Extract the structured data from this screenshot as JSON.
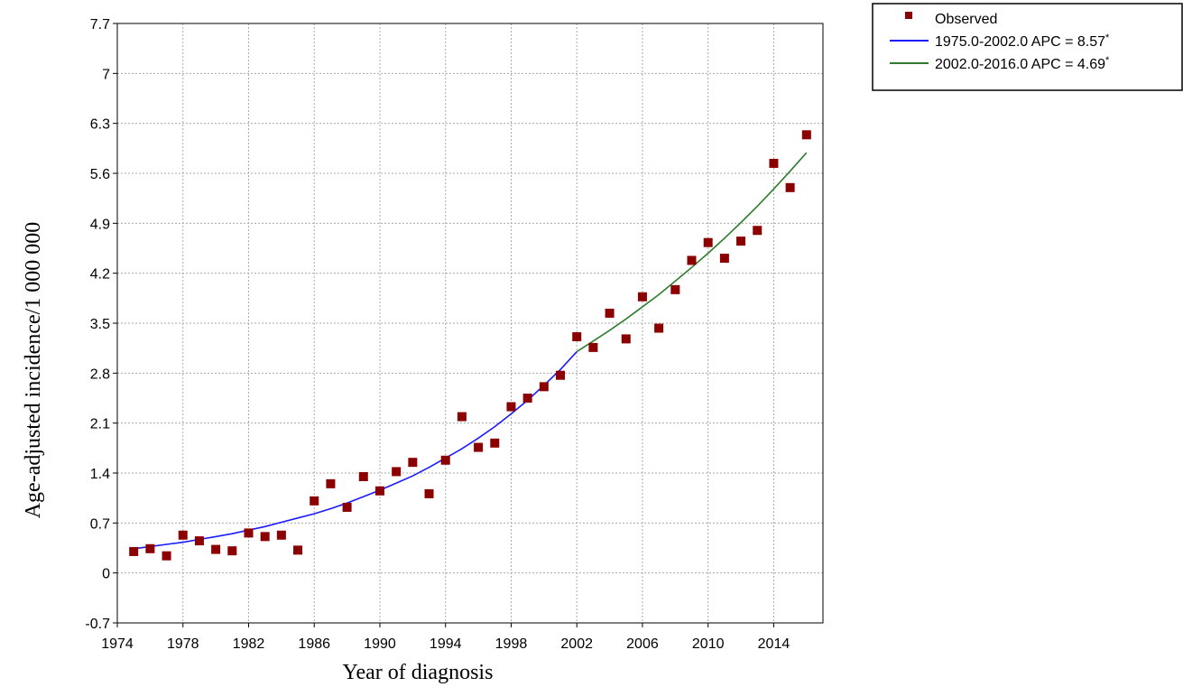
{
  "chart_data": {
    "type": "scatter",
    "xlabel": "Year of diagnosis",
    "ylabel": "Age-adjusted incidence/1 000 000",
    "xlim": [
      1974,
      2017
    ],
    "ylim": [
      -0.7,
      7.7
    ],
    "x_ticks": [
      "1974",
      "1978",
      "1982",
      "1986",
      "1990",
      "1994",
      "1998",
      "2002",
      "2006",
      "2010",
      "2014"
    ],
    "y_ticks": [
      "7.7",
      "7",
      "6.3",
      "5.6",
      "4.9",
      "4.2",
      "3.5",
      "2.8",
      "2.1",
      "1.4",
      "0.7",
      "0",
      "-0.7"
    ],
    "grid": true,
    "legend_position": "top-right",
    "series": [
      {
        "name": "Observed",
        "kind": "points",
        "color": "#8b0000",
        "x": [
          1975,
          1976,
          1977,
          1978,
          1979,
          1980,
          1981,
          1982,
          1983,
          1984,
          1985,
          1986,
          1987,
          1988,
          1989,
          1990,
          1991,
          1992,
          1993,
          1994,
          1995,
          1996,
          1997,
          1998,
          1999,
          2000,
          2001,
          2002,
          2003,
          2004,
          2005,
          2006,
          2007,
          2008,
          2009,
          2010,
          2011,
          2012,
          2013,
          2014,
          2015,
          2016
        ],
        "y": [
          0.3,
          0.34,
          0.24,
          0.53,
          0.45,
          0.33,
          0.31,
          0.56,
          0.51,
          0.53,
          0.32,
          1.01,
          1.25,
          0.92,
          1.35,
          1.15,
          1.42,
          1.55,
          1.11,
          1.58,
          2.19,
          1.76,
          1.82,
          2.33,
          2.45,
          2.61,
          2.77,
          3.31,
          3.16,
          3.64,
          3.28,
          3.87,
          3.43,
          3.97,
          4.38,
          4.63,
          4.41,
          4.65,
          4.8,
          5.74,
          5.4,
          6.14
        ]
      },
      {
        "name": "1975.0-2002.0 APC  = 8.57",
        "star": "*",
        "kind": "line",
        "color": "#1a1aff",
        "x": [
          1975,
          1976,
          1977,
          1978,
          1979,
          1980,
          1981,
          1982,
          1983,
          1984,
          1985,
          1986,
          1987,
          1988,
          1989,
          1990,
          1991,
          1992,
          1993,
          1994,
          1995,
          1996,
          1997,
          1998,
          1999,
          2000,
          2001,
          2002
        ],
        "y": [
          0.34,
          0.37,
          0.4,
          0.43,
          0.47,
          0.51,
          0.55,
          0.6,
          0.65,
          0.71,
          0.77,
          0.83,
          0.9,
          0.98,
          1.07,
          1.16,
          1.26,
          1.36,
          1.48,
          1.61,
          1.74,
          1.89,
          2.05,
          2.23,
          2.42,
          2.63,
          2.85,
          3.1
        ]
      },
      {
        "name": "2002.0-2016.0 APC  = 4.69",
        "star": "*",
        "kind": "line",
        "color": "#2e7d2e",
        "x": [
          2002,
          2003,
          2004,
          2005,
          2006,
          2007,
          2008,
          2009,
          2010,
          2011,
          2012,
          2013,
          2014,
          2015,
          2016
        ],
        "y": [
          3.1,
          3.25,
          3.4,
          3.56,
          3.73,
          3.9,
          4.09,
          4.28,
          4.48,
          4.69,
          4.91,
          5.14,
          5.38,
          5.63,
          5.89
        ]
      }
    ]
  }
}
